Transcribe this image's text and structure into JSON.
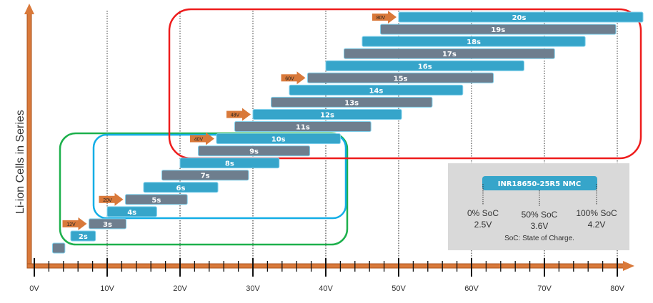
{
  "chart_data": {
    "type": "range-bar",
    "ylabel": "Li-ion Cells in Series",
    "x_ticks": [
      "0V",
      "10V",
      "20V",
      "30V",
      "40V",
      "50V",
      "60V",
      "70V",
      "80V"
    ],
    "x_range": [
      0,
      84
    ],
    "cell_min_v": 2.5,
    "cell_max_v": 4.2,
    "bars": [
      {
        "cells": 1,
        "label": ""
      },
      {
        "cells": 2,
        "label": "2s"
      },
      {
        "cells": 3,
        "label": "3s"
      },
      {
        "cells": 4,
        "label": "4s"
      },
      {
        "cells": 5,
        "label": "5s"
      },
      {
        "cells": 6,
        "label": "6s"
      },
      {
        "cells": 7,
        "label": "7s"
      },
      {
        "cells": 8,
        "label": "8s"
      },
      {
        "cells": 9,
        "label": "9s"
      },
      {
        "cells": 10,
        "label": "10s"
      },
      {
        "cells": 11,
        "label": "11s"
      },
      {
        "cells": 12,
        "label": "12s"
      },
      {
        "cells": 13,
        "label": "13s"
      },
      {
        "cells": 14,
        "label": "14s"
      },
      {
        "cells": 15,
        "label": "15s"
      },
      {
        "cells": 16,
        "label": "16s"
      },
      {
        "cells": 17,
        "label": "17s"
      },
      {
        "cells": 18,
        "label": "18s"
      },
      {
        "cells": 19,
        "label": "19s"
      },
      {
        "cells": 20,
        "label": "20s"
      }
    ],
    "nominal_markers": [
      {
        "cells": 3,
        "label": "12V"
      },
      {
        "cells": 5,
        "label": "20V"
      },
      {
        "cells": 10,
        "label": "40V"
      },
      {
        "cells": 12,
        "label": "48V"
      },
      {
        "cells": 15,
        "label": "60V"
      },
      {
        "cells": 20,
        "label": "80V"
      }
    ],
    "colors": {
      "odd": "#6e7e8e",
      "even": "#36a5ca",
      "axis": "#d9793a",
      "green": "#1db04c",
      "blue": "#13aee6",
      "red": "#ee1c1c"
    }
  },
  "legend": {
    "cell": "INR18650-25R5 NMC",
    "points": [
      {
        "soc": "0% SoC",
        "v": "2.5V"
      },
      {
        "soc": "50% SoC",
        "v": "3.6V"
      },
      {
        "soc": "100% SoC",
        "v": "4.2V"
      }
    ],
    "note": "SoC: State of Charge."
  }
}
